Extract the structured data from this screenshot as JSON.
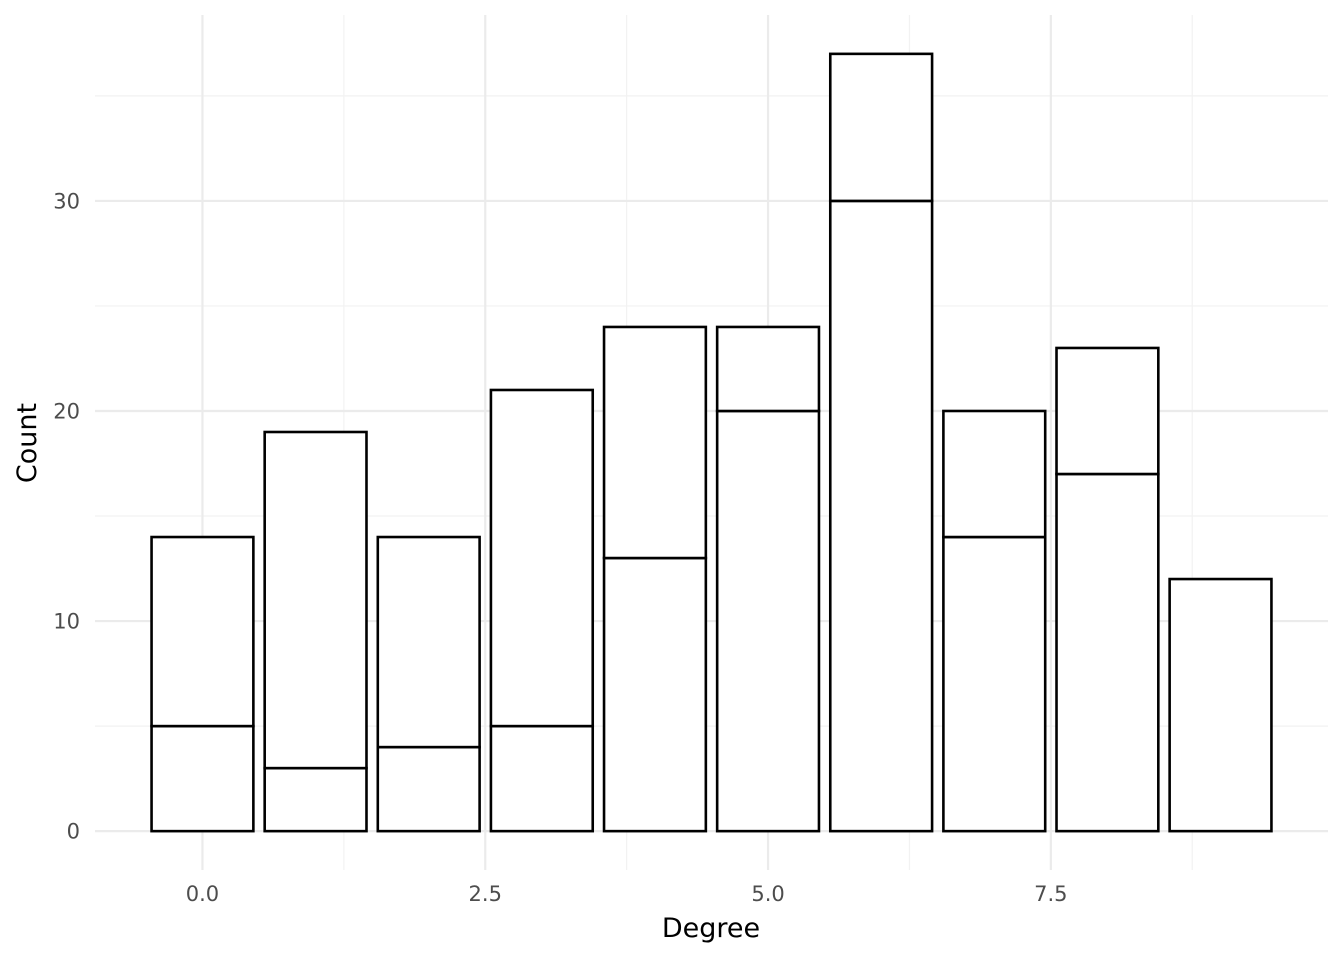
{
  "chart_data": {
    "type": "bar",
    "stacked": true,
    "title": "",
    "xlabel": "Degree",
    "ylabel": "Count",
    "x": [
      0,
      1,
      2,
      3,
      4,
      5,
      6,
      7,
      8,
      9
    ],
    "series": [
      {
        "values": [
          5,
          3,
          4,
          5,
          13,
          20,
          30,
          14,
          17,
          0
        ]
      },
      {
        "values": [
          9,
          16,
          10,
          16,
          11,
          4,
          7,
          6,
          6,
          12
        ]
      }
    ],
    "totals": [
      14,
      19,
      14,
      21,
      24,
      24,
      37,
      20,
      23,
      12
    ],
    "xlim": [
      -0.95,
      9.95
    ],
    "ylim": [
      -1.85,
      38.85
    ],
    "x_ticks": [
      {
        "value": 0,
        "label": "0.0"
      },
      {
        "value": 2.5,
        "label": "2.5"
      },
      {
        "value": 5,
        "label": "5.0"
      },
      {
        "value": 7.5,
        "label": "7.5"
      }
    ],
    "y_ticks": [
      {
        "value": 0,
        "label": "0"
      },
      {
        "value": 10,
        "label": "10"
      },
      {
        "value": 20,
        "label": "20"
      },
      {
        "value": 30,
        "label": "30"
      }
    ],
    "grid": true,
    "legend": "none",
    "colors": {
      "bar_fill": "#ffffff",
      "bar_stroke": "#000000",
      "grid_major": "#ebebeb",
      "grid_minor": "#f2f2f2"
    }
  }
}
